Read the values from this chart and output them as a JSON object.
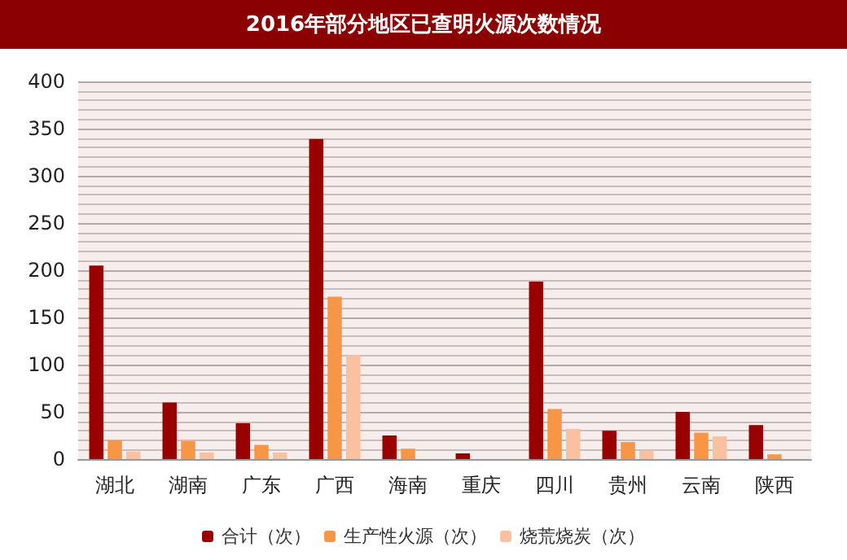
{
  "chart_data": {
    "type": "bar",
    "title": "2016年部分地区已查明火源次数情况",
    "categories": [
      "湖北",
      "湖南",
      "广东",
      "广西",
      "海南",
      "重庆",
      "四川",
      "贵州",
      "云南",
      "陕西"
    ],
    "series": [
      {
        "name": "合计（次）",
        "color": "#990000",
        "values": [
          205,
          60,
          38,
          339,
          25,
          6,
          188,
          30,
          50,
          36
        ]
      },
      {
        "name": "生产性火源（次）",
        "color": "#f79646",
        "values": [
          20,
          19,
          15,
          172,
          11,
          0,
          53,
          18,
          28,
          5
        ]
      },
      {
        "name": "烧荒烧炭（次）",
        "color": "#fac09f",
        "values": [
          8,
          7,
          7,
          110,
          0,
          0,
          32,
          9,
          24,
          0
        ]
      }
    ],
    "ylim": [
      0,
      400
    ],
    "yticks": [
      0,
      50,
      100,
      150,
      200,
      250,
      300,
      350,
      400
    ],
    "grid": "y",
    "legend": "bottom"
  }
}
